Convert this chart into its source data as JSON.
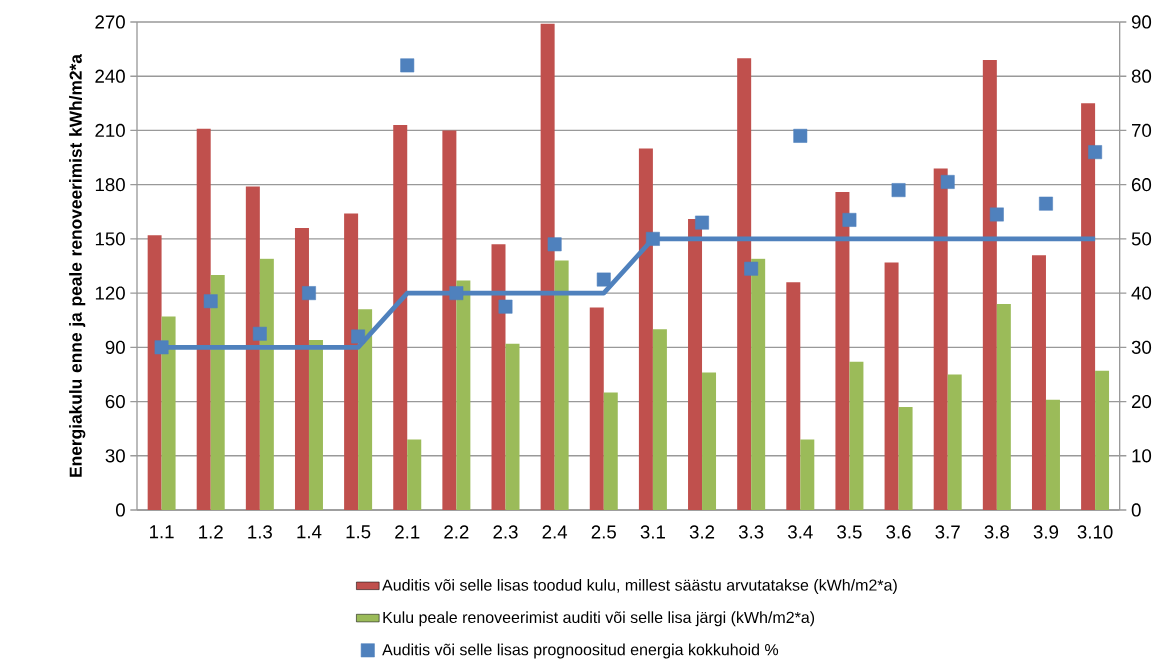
{
  "chart_data": {
    "type": "bar",
    "ylabel": "Energiakulu enne ja peale renoveerimist kWh/m2*a",
    "categories": [
      "1.1",
      "1.2",
      "1.3",
      "1.4",
      "1.5",
      "2.1",
      "2.2",
      "2.3",
      "2.4",
      "2.5",
      "3.1",
      "3.2",
      "3.3",
      "3.4",
      "3.5",
      "3.6",
      "3.7",
      "3.8",
      "3.9",
      "3.10"
    ],
    "series": [
      {
        "name": "Auditis või selle lisas toodud kulu, millest säästu arvutatakse (kWh/m2*a)",
        "color": "#c0504d",
        "values": [
          152,
          211,
          179,
          156,
          164,
          213,
          210,
          147,
          269,
          112,
          200,
          161,
          250,
          126,
          176,
          137,
          189,
          249,
          141,
          225
        ]
      },
      {
        "name": "Kulu peale renoveerimist auditi või selle lisa järgi (kWh/m2*a)",
        "color": "#9bbb59",
        "values": [
          107,
          130,
          139,
          94,
          111,
          39,
          127,
          92,
          138,
          65,
          100,
          76,
          139,
          39,
          82,
          57,
          75,
          114,
          61,
          77
        ]
      },
      {
        "type": "line",
        "axis": "y2",
        "color": "#4f81bd",
        "marker": "none",
        "values": [
          30,
          30,
          30,
          30,
          30,
          40,
          40,
          40,
          40,
          40,
          50,
          50,
          50,
          50,
          50,
          50,
          50,
          50,
          50,
          50
        ]
      },
      {
        "type": "scatter",
        "axis": "y2",
        "name": "Auditis või selle lisas prognoositud energia kokkuhoid %",
        "color": "#4f81bd",
        "marker": "square",
        "values": [
          30,
          38.5,
          32.5,
          40,
          32,
          82,
          40,
          37.5,
          49,
          42.5,
          50,
          53,
          44.5,
          69,
          53.5,
          59,
          60.5,
          54.5,
          56.5,
          66
        ]
      }
    ],
    "ylim": [
      0,
      270
    ],
    "yticks": [
      0,
      30,
      60,
      90,
      120,
      150,
      180,
      210,
      240,
      270
    ],
    "y2lim": [
      0,
      90
    ],
    "y2ticks": [
      0,
      10,
      20,
      30,
      40,
      50,
      60,
      70,
      80,
      90
    ],
    "grid": "y",
    "legend": "bottom"
  }
}
